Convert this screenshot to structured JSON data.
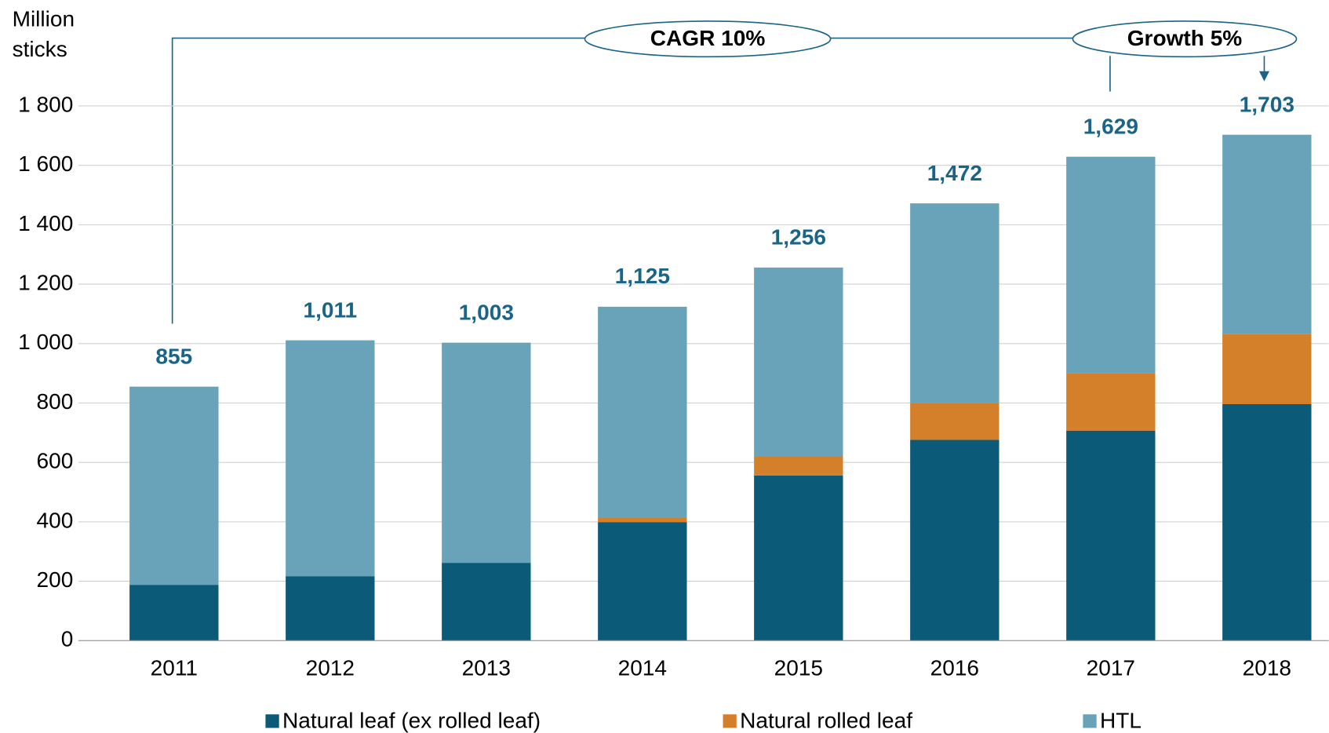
{
  "chart_data": {
    "type": "stacked_bar",
    "ylabel": [
      "Million",
      "sticks"
    ],
    "categories": [
      "2011",
      "2012",
      "2013",
      "2014",
      "2015",
      "2016",
      "2017",
      "2018"
    ],
    "series": [
      {
        "name": "Natural leaf (ex rolled leaf)",
        "color": "#0b5a78",
        "values": [
          188,
          217,
          262,
          399,
          556,
          676,
          707,
          796
        ]
      },
      {
        "name": "Natural rolled leaf",
        "color": "#d4802a",
        "values": [
          0,
          0,
          0,
          14,
          63,
          123,
          194,
          237
        ]
      },
      {
        "name": "HTL",
        "color": "#68a3b9",
        "values": [
          667,
          794,
          741,
          711,
          637,
          673,
          728,
          670
        ]
      }
    ],
    "totals": {
      "values": [
        855,
        1011,
        1003,
        1125,
        1256,
        1472,
        1629,
        1703
      ],
      "value_labels": [
        "855",
        "1,011",
        "1,003",
        "1,125",
        "1,256",
        "1,472",
        "1,629",
        "1,703"
      ]
    },
    "annotations": [
      "CAGR 10%",
      "Growth 5%"
    ],
    "ylim": [
      0,
      1800
    ],
    "yticks": [
      0,
      200,
      400,
      600,
      800,
      {
        "value": 1000,
        "label": "1 000"
      },
      {
        "value": 1200,
        "label": "1 200"
      },
      {
        "value": 1400,
        "label": "1 400"
      },
      {
        "value": 1600,
        "label": "1 600"
      },
      {
        "value": 1800,
        "label": "1 800"
      }
    ],
    "grid": true
  }
}
